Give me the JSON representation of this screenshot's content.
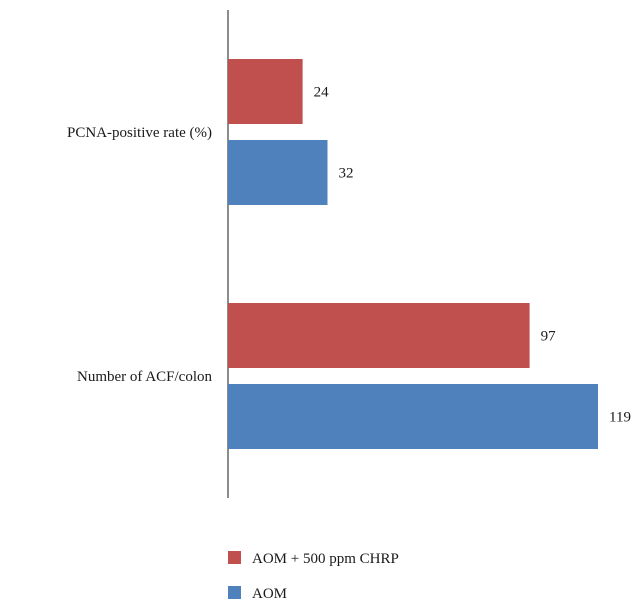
{
  "chart_data": {
    "type": "bar",
    "orientation": "horizontal",
    "title": "",
    "xlabel": "",
    "ylabel": "",
    "xlim": [
      0,
      119
    ],
    "grid": false,
    "legend_position": "bottom",
    "categories": [
      "PCNA-positive rate (%)",
      "Number of ACF/colon"
    ],
    "series": [
      {
        "name": "AOM + 500 ppm CHRP",
        "values": [
          24,
          97
        ],
        "color": "#c0504d"
      },
      {
        "name": "AOM",
        "values": [
          32,
          119
        ],
        "color": "#4f81bd"
      }
    ]
  }
}
